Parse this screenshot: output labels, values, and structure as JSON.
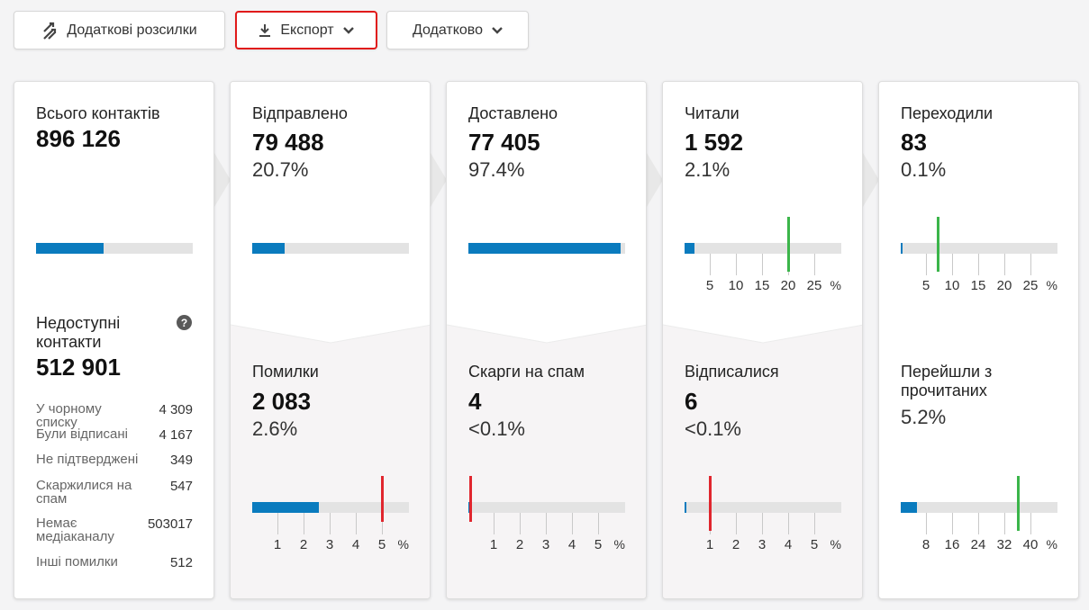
{
  "toolbar": {
    "additional_mailings": "Додаткові розсилки",
    "export": "Експорт",
    "more": "Додатково"
  },
  "total": {
    "label": "Всього контактів",
    "value": "896 126",
    "bar_fraction": 0.43
  },
  "unavailable": {
    "label": "Недоступні контакти",
    "value": "512 901",
    "rows": [
      {
        "label": "У чорному списку",
        "value": "4 309"
      },
      {
        "label": "Були відписані",
        "value": "4 167"
      },
      {
        "label": "Не підтверджені",
        "value": "349"
      },
      {
        "label": "Скаржилися на спам",
        "value": "547"
      },
      {
        "label": "Немає медіаканалу",
        "value": "503017"
      },
      {
        "label": "Інші помилки",
        "value": "512"
      }
    ]
  },
  "sent": {
    "label": "Відправлено",
    "value": "79 488",
    "percent": "20.7%",
    "bar_fraction": 0.207
  },
  "delivered": {
    "label": "Доставлено",
    "value": "77 405",
    "percent": "97.4%",
    "bar_fraction": 0.974
  },
  "read": {
    "label": "Читали",
    "value": "1 592",
    "percent": "2.1%",
    "bar_percent": 2.1,
    "benchmark_percent": 20,
    "ticks": [
      "5",
      "10",
      "15",
      "20",
      "25"
    ],
    "unit": "%"
  },
  "clicked": {
    "label": "Переходили",
    "value": "83",
    "percent": "0.1%",
    "bar_percent": 0.1,
    "benchmark_percent": 7.2,
    "ticks": [
      "5",
      "10",
      "15",
      "20",
      "25"
    ],
    "unit": "%"
  },
  "errors": {
    "label": "Помилки",
    "value": "2 083",
    "percent": "2.6%",
    "bar_percent": 2.6,
    "benchmark_percent": 5,
    "ticks": [
      "1",
      "2",
      "3",
      "4",
      "5"
    ],
    "unit": "%"
  },
  "spam": {
    "label": "Скарги на спам",
    "value": "4",
    "percent": "<0.1%",
    "bar_percent": 0.02,
    "benchmark_percent": 0.1,
    "ticks": [
      "1",
      "2",
      "3",
      "4",
      "5"
    ],
    "unit": "%"
  },
  "unsubscribed": {
    "label": "Відписалися",
    "value": "6",
    "percent": "<0.1%",
    "bar_percent": 0.02,
    "benchmark_percent": 1,
    "ticks": [
      "1",
      "2",
      "3",
      "4",
      "5"
    ],
    "unit": "%"
  },
  "click_of_read": {
    "label": "Перейшли з прочитаних",
    "percent": "5.2%",
    "bar_percent": 5.2,
    "benchmark_percent": 36,
    "ticks": [
      "8",
      "16",
      "24",
      "32",
      "40"
    ],
    "unit": "%"
  },
  "colors": {
    "bar_fill": "#0a7bbe",
    "bar_track": "#e3e3e3",
    "good_marker": "#3bb54a",
    "bad_marker": "#e0262e",
    "export_highlight": "#e01a1a"
  }
}
